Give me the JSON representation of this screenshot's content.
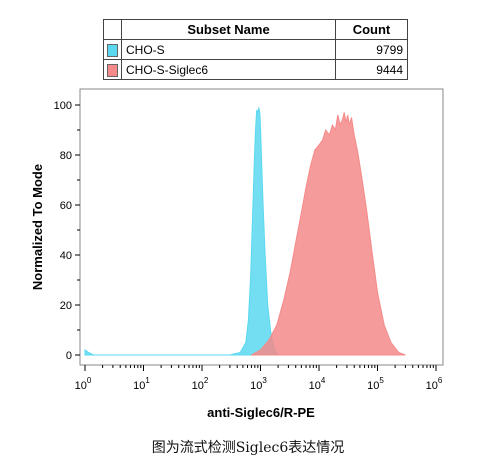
{
  "legend": {
    "header_name": "Subset Name",
    "header_count": "Count",
    "rows": [
      {
        "name": "CHO-S",
        "count": "9799",
        "color": "#5ad8f0"
      },
      {
        "name": "CHO-S-Siglec6",
        "count": "9444",
        "color": "#f58a8a"
      }
    ]
  },
  "caption": "图为流式检测Siglec6表达情况",
  "chart_data": {
    "type": "area",
    "xlabel": "anti-Siglec6/R-PE",
    "ylabel": "Normalized To Mode",
    "x_scale": "log",
    "xlim": [
      1,
      1000000
    ],
    "ylim": [
      0,
      105
    ],
    "y_ticks": [
      0,
      20,
      40,
      60,
      80,
      100
    ],
    "x_ticks": [
      {
        "base": "10",
        "exp": "0"
      },
      {
        "base": "10",
        "exp": "1"
      },
      {
        "base": "10",
        "exp": "2"
      },
      {
        "base": "10",
        "exp": "3"
      },
      {
        "base": "10",
        "exp": "4"
      },
      {
        "base": "10",
        "exp": "5"
      },
      {
        "base": "10",
        "exp": "6"
      }
    ],
    "series": [
      {
        "name": "CHO-S",
        "color": "#5ad8f0",
        "points": [
          [
            1,
            2
          ],
          [
            1.15,
            1
          ],
          [
            1.4,
            0
          ],
          [
            300,
            0
          ],
          [
            450,
            1
          ],
          [
            560,
            5
          ],
          [
            620,
            14
          ],
          [
            680,
            32
          ],
          [
            730,
            55
          ],
          [
            780,
            76
          ],
          [
            820,
            90
          ],
          [
            860,
            98
          ],
          [
            900,
            97
          ],
          [
            940,
            99
          ],
          [
            980,
            96
          ],
          [
            1020,
            85
          ],
          [
            1100,
            62
          ],
          [
            1200,
            40
          ],
          [
            1330,
            20
          ],
          [
            1500,
            9
          ],
          [
            1700,
            3
          ],
          [
            2000,
            0
          ]
        ]
      },
      {
        "name": "CHO-S-Siglec6",
        "color": "#f58a8a",
        "points": [
          [
            700,
            0
          ],
          [
            1000,
            2
          ],
          [
            1400,
            6
          ],
          [
            1900,
            12
          ],
          [
            2500,
            22
          ],
          [
            3200,
            33
          ],
          [
            4000,
            45
          ],
          [
            5000,
            57
          ],
          [
            6000,
            67
          ],
          [
            7200,
            76
          ],
          [
            8500,
            82
          ],
          [
            10000,
            84
          ],
          [
            11500,
            86
          ],
          [
            13000,
            90
          ],
          [
            15000,
            88
          ],
          [
            17000,
            92
          ],
          [
            19000,
            90
          ],
          [
            21000,
            96
          ],
          [
            23000,
            92
          ],
          [
            25000,
            94
          ],
          [
            27000,
            97
          ],
          [
            29000,
            93
          ],
          [
            31000,
            96
          ],
          [
            33000,
            92
          ],
          [
            36000,
            95
          ],
          [
            40000,
            88
          ],
          [
            46000,
            81
          ],
          [
            54000,
            71
          ],
          [
            65000,
            58
          ],
          [
            80000,
            42
          ],
          [
            100000,
            25
          ],
          [
            130000,
            12
          ],
          [
            170000,
            5
          ],
          [
            230000,
            1
          ],
          [
            300000,
            0
          ]
        ]
      }
    ]
  }
}
